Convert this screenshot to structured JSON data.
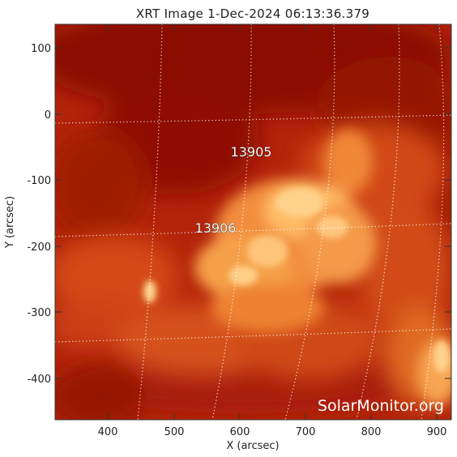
{
  "title": "XRT Image   1-Dec-2024 06:13:36.379",
  "axes": {
    "xlabel": "X (arcsec)",
    "ylabel": "Y (arcsec)",
    "x_ticks": [
      "400",
      "500",
      "600",
      "700",
      "800",
      "900"
    ],
    "y_ticks": [
      "100",
      "0",
      "-100",
      "-200",
      "-300",
      "-400"
    ]
  },
  "regions": [
    {
      "label": "13905"
    },
    {
      "label": "13906"
    }
  ],
  "watermark": "SolarMonitor.org",
  "colors": {
    "background_dark": "#8a0c02",
    "base": "#b8280a",
    "bright": "#ffd79a",
    "grid": "#ffffff"
  }
}
